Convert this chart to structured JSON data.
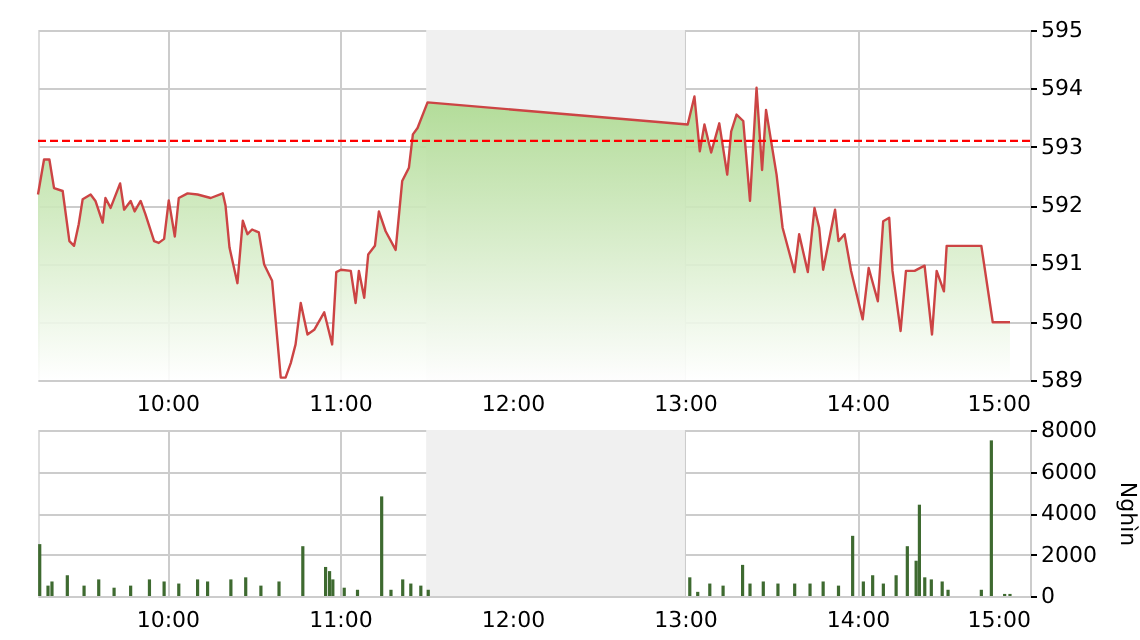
{
  "chart_data": [
    {
      "type": "area",
      "xlim": [
        9.25,
        15
      ],
      "xticks": [
        {
          "value": 10,
          "label": "10:00"
        },
        {
          "value": 11,
          "label": "11:00"
        },
        {
          "value": 12,
          "label": "12:00"
        },
        {
          "value": 13,
          "label": "13:00"
        },
        {
          "value": 14,
          "label": "14:00"
        },
        {
          "value": 15,
          "label": "15:00"
        }
      ],
      "ylim": [
        589,
        595
      ],
      "yticks": [
        589,
        590,
        591,
        592,
        593,
        594,
        595
      ],
      "grid": true,
      "line_style": "solid",
      "x": [
        9.25,
        9.285,
        9.316,
        9.343,
        9.393,
        9.432,
        9.459,
        9.486,
        9.509,
        9.555,
        9.583,
        9.625,
        9.641,
        9.671,
        9.726,
        9.749,
        9.787,
        9.81,
        9.845,
        9.873,
        9.923,
        9.95,
        9.981,
        10.008,
        10.043,
        10.066,
        10.117,
        10.175,
        10.251,
        10.321,
        10.337,
        10.36,
        10.406,
        10.437,
        10.464,
        10.491,
        10.53,
        10.561,
        10.607,
        10.657,
        10.685,
        10.715,
        10.743,
        10.773,
        10.812,
        10.851,
        10.909,
        10.955,
        10.979,
        11.006,
        11.063,
        11.091,
        11.11,
        11.141,
        11.164,
        11.203,
        11.226,
        11.265,
        11.323,
        11.361,
        11.4,
        11.423,
        11.45,
        11.508,
        13.016,
        13.055,
        13.086,
        13.113,
        13.152,
        13.199,
        13.245,
        13.268,
        13.299,
        13.338,
        13.377,
        13.415,
        13.447,
        13.47,
        13.531,
        13.566,
        13.635,
        13.662,
        13.712,
        13.751,
        13.778,
        13.801,
        13.87,
        13.89,
        13.925,
        13.963,
        14.03,
        14.065,
        14.118,
        14.149,
        14.184,
        14.203,
        14.25,
        14.281,
        14.331,
        14.389,
        14.432,
        14.459,
        14.501,
        14.517,
        14.718,
        14.784,
        14.884
      ],
      "series": [
        {
          "color": "#cc4444",
          "values": [
            592.18,
            592.78,
            592.78,
            592.29,
            592.24,
            591.38,
            591.3,
            591.67,
            592.1,
            592.18,
            592.07,
            591.7,
            592.12,
            591.95,
            592.37,
            591.92,
            592.07,
            591.89,
            592.07,
            591.84,
            591.38,
            591.35,
            591.42,
            592.08,
            591.46,
            592.12,
            592.2,
            592.18,
            592.12,
            592.2,
            591.99,
            591.27,
            590.66,
            591.73,
            591.5,
            591.58,
            591.53,
            590.98,
            590.7,
            589.04,
            589.04,
            589.29,
            589.61,
            590.32,
            589.78,
            589.86,
            590.16,
            589.61,
            590.85,
            590.89,
            590.87,
            590.32,
            590.87,
            590.41,
            591.15,
            591.3,
            591.89,
            591.55,
            591.23,
            592.41,
            592.64,
            593.21,
            593.32,
            593.76,
            593.38,
            593.86,
            592.92,
            593.38,
            592.9,
            593.4,
            592.52,
            593.26,
            593.55,
            593.44,
            592.07,
            594.01,
            592.6,
            593.63,
            592.52,
            591.61,
            590.85,
            591.5,
            590.85,
            591.95,
            591.61,
            590.89,
            591.92,
            591.38,
            591.5,
            590.87,
            590.04,
            590.92,
            590.35,
            591.72,
            591.78,
            590.87,
            589.84,
            590.87,
            590.87,
            590.96,
            589.78,
            590.87,
            590.52,
            591.3,
            591.3,
            589.99,
            589.99
          ]
        }
      ],
      "ref_lines": [
        {
          "axis": "y",
          "value": 593.1,
          "color": "#ff0000",
          "line_style": "dashed"
        }
      ],
      "bands": [
        {
          "axis": "x",
          "from": 11.5,
          "to": 13,
          "color": "#f0f0f0"
        }
      ]
    },
    {
      "type": "bar",
      "xlim": [
        9.25,
        15
      ],
      "xticks": [
        {
          "value": 10,
          "label": "10:00"
        },
        {
          "value": 11,
          "label": "11:00"
        },
        {
          "value": 12,
          "label": "12:00"
        },
        {
          "value": 13,
          "label": "13:00"
        },
        {
          "value": 14,
          "label": "14:00"
        },
        {
          "value": 15,
          "label": "15:00"
        }
      ],
      "ylim": [
        0,
        8000
      ],
      "yticks": [
        0,
        2000,
        4000,
        6000,
        8000
      ],
      "grid": true,
      "ylabel": "Nghìn",
      "x": [
        9.26,
        9.308,
        9.331,
        9.42,
        9.517,
        9.602,
        9.691,
        9.787,
        9.896,
        9.981,
        10.066,
        10.175,
        10.233,
        10.368,
        10.454,
        10.542,
        10.647,
        10.785,
        10.917,
        10.94,
        10.959,
        11.025,
        11.102,
        11.242,
        11.296,
        11.364,
        11.411,
        11.469,
        11.512,
        13.028,
        13.074,
        13.144,
        13.221,
        13.334,
        13.377,
        13.454,
        13.539,
        13.636,
        13.725,
        13.801,
        13.89,
        13.972,
        14.034,
        14.088,
        14.15,
        14.224,
        14.289,
        14.34,
        14.359,
        14.39,
        14.428,
        14.491,
        14.525,
        14.718,
        14.776,
        14.853,
        14.884
      ],
      "series": [
        {
          "color": "#3e6a30",
          "values": [
            2500,
            500,
            700,
            1000,
            500,
            800,
            400,
            500,
            800,
            700,
            600,
            800,
            700,
            800,
            900,
            500,
            700,
            2400,
            1400,
            1200,
            800,
            400,
            300,
            4800,
            300,
            800,
            600,
            500,
            300,
            900,
            200,
            600,
            500,
            1500,
            600,
            700,
            600,
            600,
            600,
            700,
            500,
            2900,
            700,
            1000,
            600,
            1000,
            2400,
            1700,
            4400,
            900,
            800,
            700,
            300,
            300,
            7500,
            100,
            100
          ]
        }
      ],
      "bands": [
        {
          "axis": "x",
          "from": 11.5,
          "to": 13,
          "color": "#f0f0f0"
        }
      ]
    }
  ]
}
